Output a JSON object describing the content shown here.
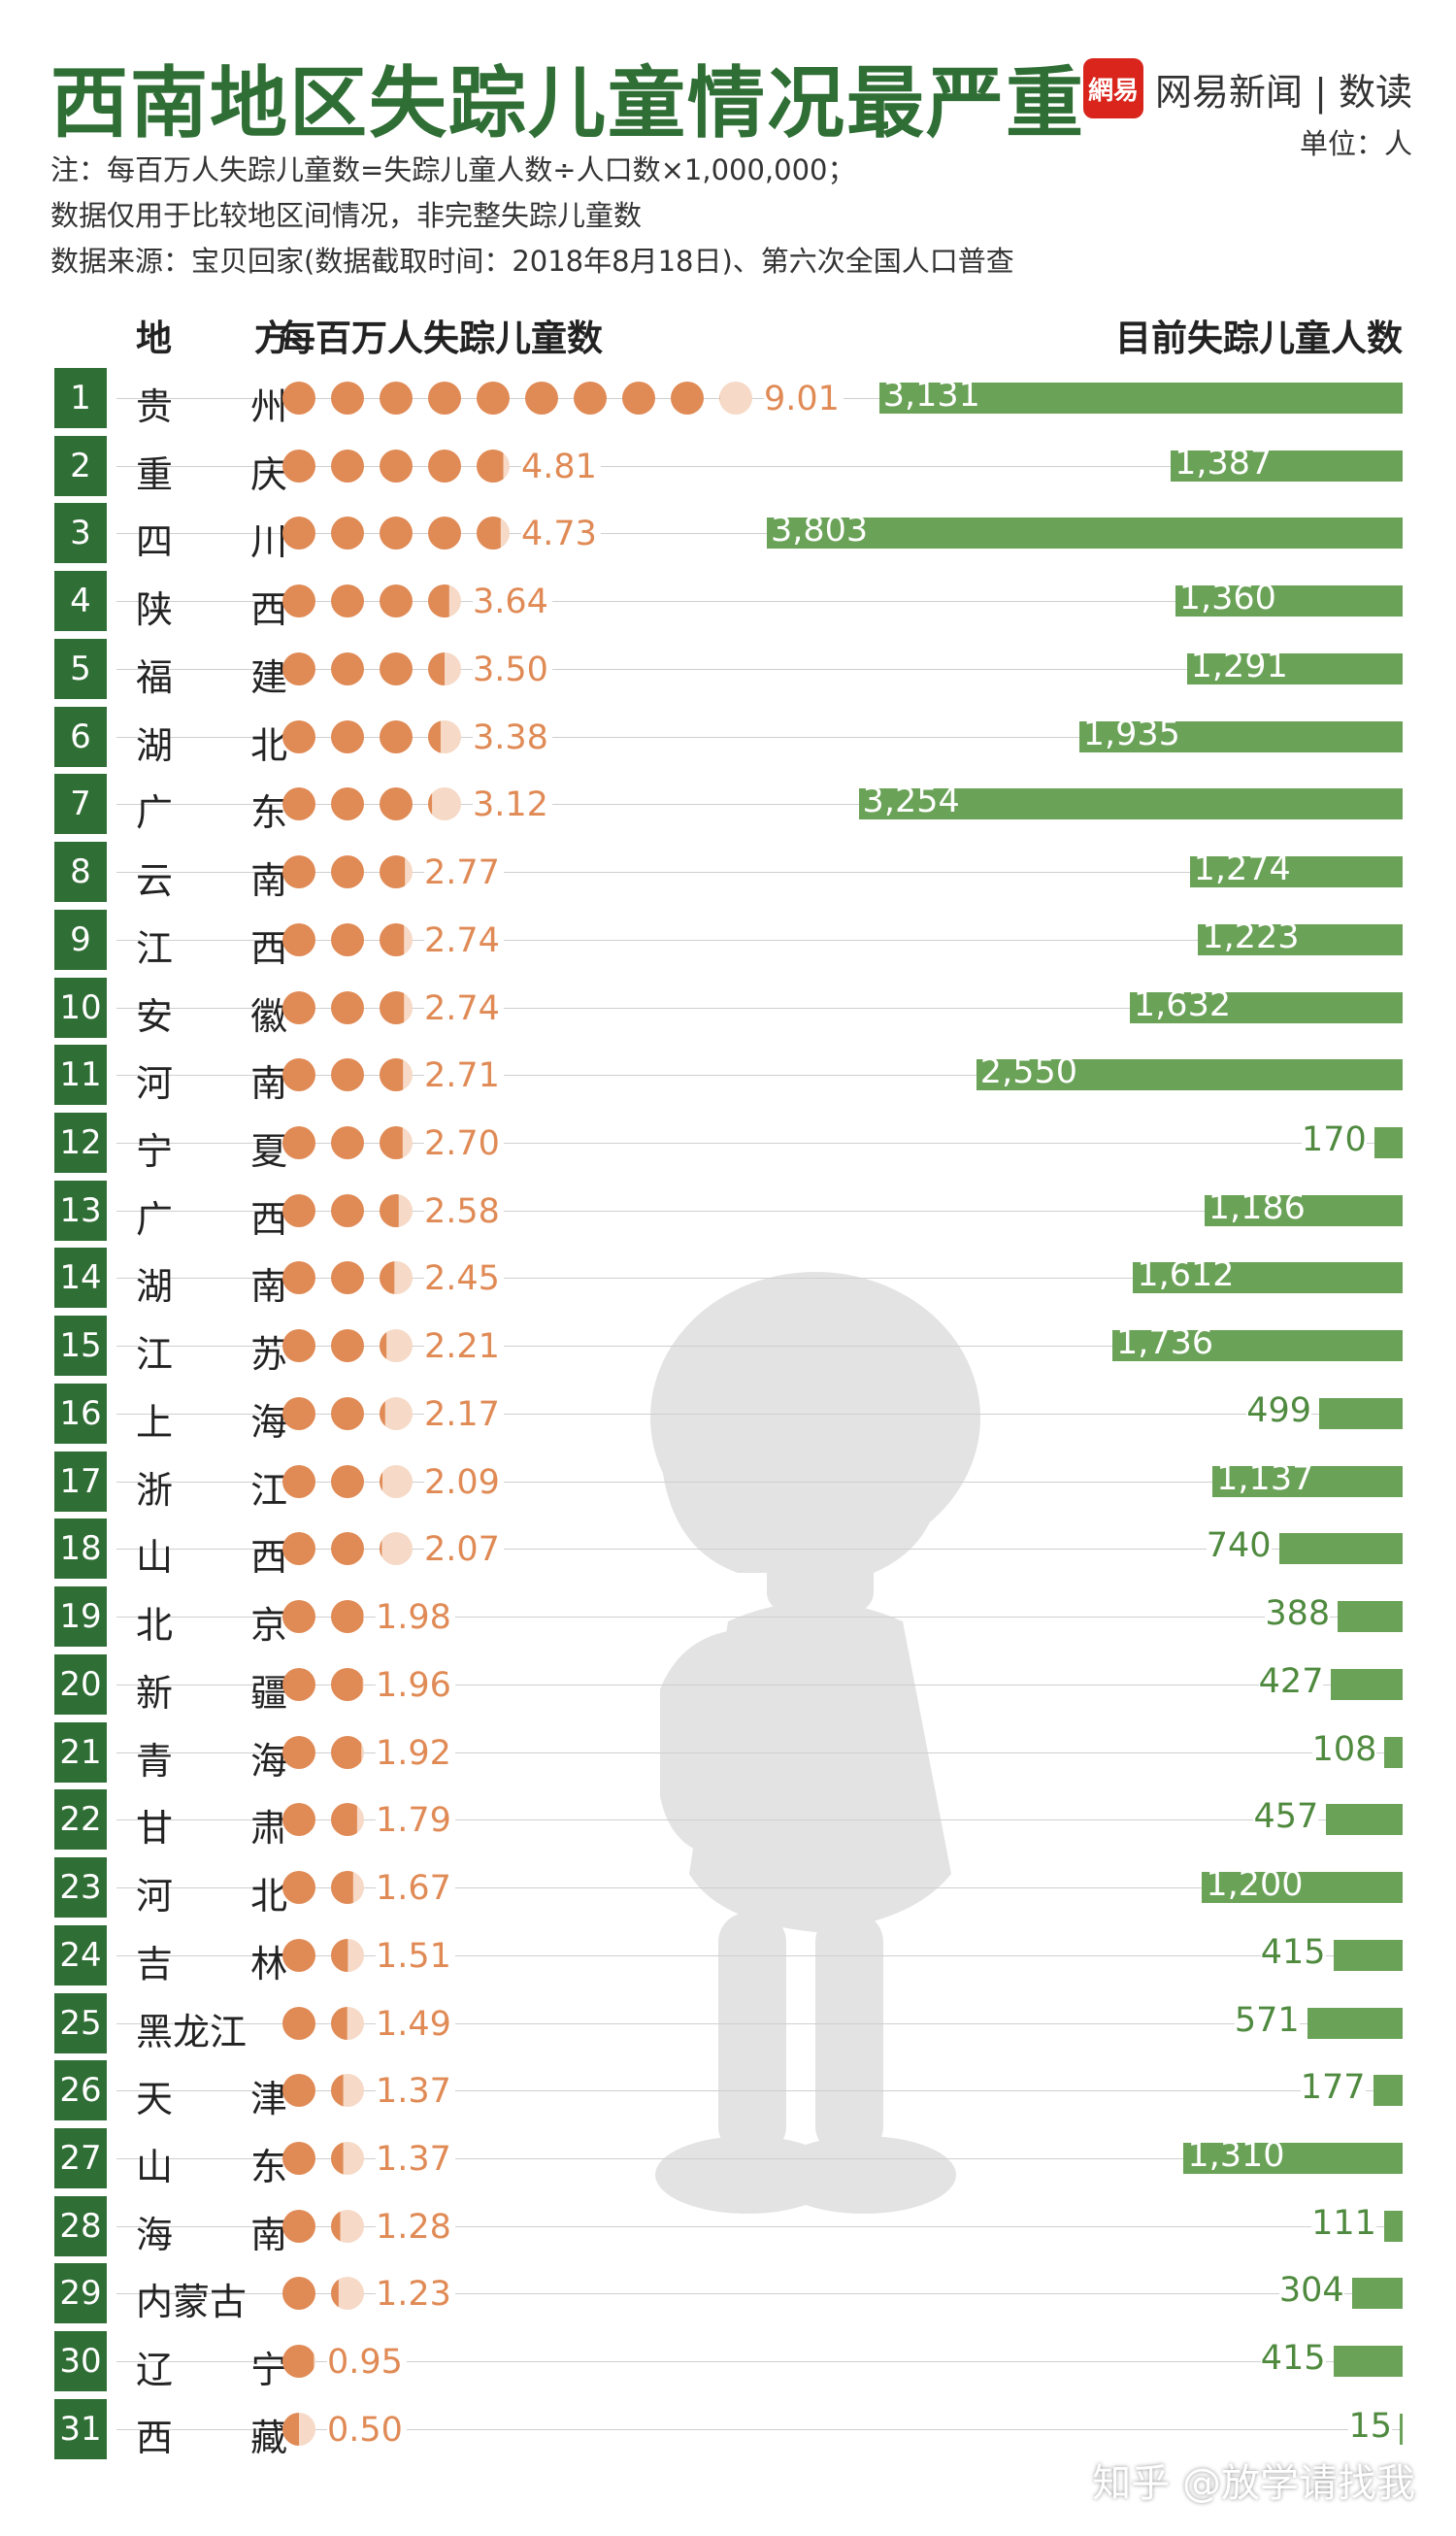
{
  "title": "西南地区失踪儿童情况最严重",
  "notes": [
    "注：每百万人失踪儿童数=失踪儿童人数÷人口数×1,000,000；",
    "数据仅用于比较地区间情况，非完整失踪儿童数",
    "数据来源：宝贝回家(数据截取时间：2018年8月18日)、第六次全国人口普查"
  ],
  "brand": {
    "logo_text": "網易",
    "name": "网易新闻",
    "section": "数读"
  },
  "unit": "单位：人",
  "watermark": "知乎 @放学请找我",
  "colors": {
    "title": "#2f6e35",
    "rank_box": "#2f6e35",
    "dot_full": "#e08a55",
    "dot_empty": "#f6d9c6",
    "rate_text": "#e08a55",
    "bar": "#6aa257",
    "bar_text_outside": "#4f8a3f",
    "logo": "#d9251c"
  },
  "chart_data": {
    "type": "table",
    "columns": [
      "地 方",
      "每百万人失踪儿童数",
      "目前失踪儿童人数"
    ],
    "dot_unit": 1,
    "rows": [
      {
        "rank": "1",
        "region": "贵 州",
        "rate": 9.01,
        "rate_label": "9.01",
        "count": 3131,
        "count_label": "3,131"
      },
      {
        "rank": "2",
        "region": "重 庆",
        "rate": 4.81,
        "rate_label": "4.81",
        "count": 1387,
        "count_label": "1,387"
      },
      {
        "rank": "3",
        "region": "四 川",
        "rate": 4.73,
        "rate_label": "4.73",
        "count": 3803,
        "count_label": "3,803"
      },
      {
        "rank": "4",
        "region": "陕 西",
        "rate": 3.64,
        "rate_label": "3.64",
        "count": 1360,
        "count_label": "1,360"
      },
      {
        "rank": "5",
        "region": "福 建",
        "rate": 3.5,
        "rate_label": "3.50",
        "count": 1291,
        "count_label": "1,291"
      },
      {
        "rank": "6",
        "region": "湖 北",
        "rate": 3.38,
        "rate_label": "3.38",
        "count": 1935,
        "count_label": "1,935"
      },
      {
        "rank": "7",
        "region": "广 东",
        "rate": 3.12,
        "rate_label": "3.12",
        "count": 3254,
        "count_label": "3,254"
      },
      {
        "rank": "8",
        "region": "云 南",
        "rate": 2.77,
        "rate_label": "2.77",
        "count": 1274,
        "count_label": "1,274"
      },
      {
        "rank": "9",
        "region": "江 西",
        "rate": 2.74,
        "rate_label": "2.74",
        "count": 1223,
        "count_label": "1,223"
      },
      {
        "rank": "10",
        "region": "安 徽",
        "rate": 2.74,
        "rate_label": "2.74",
        "count": 1632,
        "count_label": "1,632"
      },
      {
        "rank": "11",
        "region": "河 南",
        "rate": 2.71,
        "rate_label": "2.71",
        "count": 2550,
        "count_label": "2,550"
      },
      {
        "rank": "12",
        "region": "宁 夏",
        "rate": 2.7,
        "rate_label": "2.70",
        "count": 170,
        "count_label": "170"
      },
      {
        "rank": "13",
        "region": "广 西",
        "rate": 2.58,
        "rate_label": "2.58",
        "count": 1186,
        "count_label": "1,186"
      },
      {
        "rank": "14",
        "region": "湖 南",
        "rate": 2.45,
        "rate_label": "2.45",
        "count": 1612,
        "count_label": "1,612"
      },
      {
        "rank": "15",
        "region": "江 苏",
        "rate": 2.21,
        "rate_label": "2.21",
        "count": 1736,
        "count_label": "1,736"
      },
      {
        "rank": "16",
        "region": "上 海",
        "rate": 2.17,
        "rate_label": "2.17",
        "count": 499,
        "count_label": "499"
      },
      {
        "rank": "17",
        "region": "浙 江",
        "rate": 2.09,
        "rate_label": "2.09",
        "count": 1137,
        "count_label": "1,137"
      },
      {
        "rank": "18",
        "region": "山 西",
        "rate": 2.07,
        "rate_label": "2.07",
        "count": 740,
        "count_label": "740"
      },
      {
        "rank": "19",
        "region": "北 京",
        "rate": 1.98,
        "rate_label": "1.98",
        "count": 388,
        "count_label": "388"
      },
      {
        "rank": "20",
        "region": "新 疆",
        "rate": 1.96,
        "rate_label": "1.96",
        "count": 427,
        "count_label": "427"
      },
      {
        "rank": "21",
        "region": "青 海",
        "rate": 1.92,
        "rate_label": "1.92",
        "count": 108,
        "count_label": "108"
      },
      {
        "rank": "22",
        "region": "甘 肃",
        "rate": 1.79,
        "rate_label": "1.79",
        "count": 457,
        "count_label": "457"
      },
      {
        "rank": "23",
        "region": "河 北",
        "rate": 1.67,
        "rate_label": "1.67",
        "count": 1200,
        "count_label": "1,200"
      },
      {
        "rank": "24",
        "region": "吉 林",
        "rate": 1.51,
        "rate_label": "1.51",
        "count": 415,
        "count_label": "415"
      },
      {
        "rank": "25",
        "region": "黑龙江",
        "rate": 1.49,
        "rate_label": "1.49",
        "count": 571,
        "count_label": "571"
      },
      {
        "rank": "26",
        "region": "天 津",
        "rate": 1.37,
        "rate_label": "1.37",
        "count": 177,
        "count_label": "177"
      },
      {
        "rank": "27",
        "region": "山 东",
        "rate": 1.37,
        "rate_label": "1.37",
        "count": 1310,
        "count_label": "1,310"
      },
      {
        "rank": "28",
        "region": "海 南",
        "rate": 1.28,
        "rate_label": "1.28",
        "count": 111,
        "count_label": "111"
      },
      {
        "rank": "29",
        "region": "内蒙古",
        "rate": 1.23,
        "rate_label": "1.23",
        "count": 304,
        "count_label": "304"
      },
      {
        "rank": "30",
        "region": "辽 宁",
        "rate": 0.95,
        "rate_label": "0.95",
        "count": 415,
        "count_label": "415"
      },
      {
        "rank": "31",
        "region": "西 藏",
        "rate": 0.5,
        "rate_label": "0.50",
        "count": 15,
        "count_label": "15"
      }
    ]
  }
}
